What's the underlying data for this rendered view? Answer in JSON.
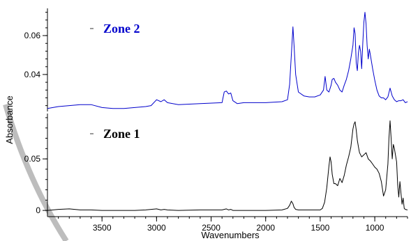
{
  "chart_data": [
    {
      "type": "line",
      "panel": "top",
      "xlabel": "",
      "ylabel": "",
      "xlim": [
        4000,
        700
      ],
      "ylim": [
        0.021,
        0.074
      ],
      "yticks": [
        0.04,
        0.06
      ],
      "yticks_labels": [
        "0.04",
        "0.06"
      ],
      "legend_position": "top-left",
      "series": [
        {
          "name": "Zone 2",
          "color": "#0000cc",
          "x": [
            4000,
            3900,
            3800,
            3700,
            3600,
            3500,
            3400,
            3300,
            3200,
            3100,
            3050,
            3000,
            2960,
            2930,
            2900,
            2800,
            2600,
            2400,
            2380,
            2360,
            2340,
            2320,
            2300,
            2260,
            2200,
            2000,
            1850,
            1800,
            1780,
            1765,
            1750,
            1740,
            1725,
            1700,
            1650,
            1600,
            1550,
            1500,
            1470,
            1455,
            1440,
            1420,
            1400,
            1390,
            1375,
            1360,
            1340,
            1320,
            1300,
            1280,
            1260,
            1240,
            1220,
            1200,
            1190,
            1180,
            1170,
            1160,
            1150,
            1140,
            1130,
            1120,
            1110,
            1100,
            1090,
            1080,
            1070,
            1060,
            1050,
            1040,
            1020,
            1000,
            980,
            960,
            940,
            920,
            900,
            880,
            860,
            840,
            820,
            800,
            780,
            760,
            740,
            720,
            700
          ],
          "y": [
            0.0225,
            0.0235,
            0.024,
            0.0245,
            0.0245,
            0.023,
            0.0225,
            0.0225,
            0.023,
            0.0235,
            0.024,
            0.027,
            0.026,
            0.027,
            0.0255,
            0.0245,
            0.025,
            0.0255,
            0.031,
            0.0315,
            0.03,
            0.0305,
            0.0265,
            0.025,
            0.0255,
            0.0255,
            0.026,
            0.027,
            0.035,
            0.05,
            0.0645,
            0.055,
            0.04,
            0.031,
            0.029,
            0.0285,
            0.0285,
            0.0295,
            0.032,
            0.039,
            0.032,
            0.031,
            0.0345,
            0.0375,
            0.038,
            0.036,
            0.0345,
            0.032,
            0.031,
            0.0345,
            0.0375,
            0.042,
            0.048,
            0.055,
            0.064,
            0.061,
            0.046,
            0.042,
            0.051,
            0.055,
            0.052,
            0.043,
            0.056,
            0.067,
            0.072,
            0.066,
            0.055,
            0.048,
            0.053,
            0.05,
            0.043,
            0.037,
            0.032,
            0.029,
            0.028,
            0.028,
            0.027,
            0.0285,
            0.033,
            0.029,
            0.027,
            0.026,
            0.0265,
            0.0265,
            0.027,
            0.0255,
            0.026
          ]
        }
      ]
    },
    {
      "type": "line",
      "panel": "bottom",
      "xlabel": "Wavenumbers",
      "ylabel": "",
      "xlim": [
        4000,
        700
      ],
      "ylim": [
        -0.006,
        0.094
      ],
      "yticks": [
        0,
        0.05
      ],
      "yticks_labels": [
        "0",
        "0.05"
      ],
      "xticks": [
        3500,
        3000,
        2500,
        2000,
        1500,
        1000
      ],
      "xticks_labels": [
        "3500",
        "3000",
        "2500",
        "2000",
        "1500",
        "1000"
      ],
      "legend_position": "top-left",
      "series": [
        {
          "name": "Zone 1",
          "color": "#000000",
          "x": [
            4000,
            3900,
            3800,
            3700,
            3600,
            3500,
            3400,
            3300,
            3200,
            3100,
            3000,
            2960,
            2930,
            2900,
            2800,
            2600,
            2400,
            2360,
            2340,
            2320,
            2300,
            2200,
            2000,
            1850,
            1800,
            1780,
            1765,
            1750,
            1740,
            1725,
            1700,
            1650,
            1600,
            1550,
            1500,
            1480,
            1460,
            1440,
            1420,
            1410,
            1400,
            1390,
            1375,
            1360,
            1340,
            1320,
            1300,
            1280,
            1260,
            1240,
            1220,
            1200,
            1190,
            1180,
            1170,
            1160,
            1150,
            1140,
            1120,
            1100,
            1080,
            1060,
            1040,
            1020,
            1000,
            980,
            960,
            940,
            920,
            900,
            880,
            870,
            860,
            850,
            840,
            830,
            820,
            800,
            790,
            780,
            770,
            760,
            750,
            740,
            730,
            720,
            700
          ],
          "y": [
            0,
            0.001,
            0.0015,
            0.0005,
            0.0005,
            0,
            0,
            0,
            0,
            0.0005,
            0.0015,
            0.0005,
            0.001,
            0.0005,
            0,
            0.0005,
            0.0005,
            0.0015,
            0.0005,
            0.001,
            0,
            0,
            0,
            0.0005,
            0.002,
            0.005,
            0.009,
            0.0065,
            0.003,
            0.001,
            0.0005,
            0.0005,
            0.0005,
            0.0005,
            0.0005,
            0.002,
            0.008,
            0.022,
            0.043,
            0.052,
            0.047,
            0.035,
            0.026,
            0.026,
            0.024,
            0.031,
            0.027,
            0.034,
            0.044,
            0.052,
            0.061,
            0.079,
            0.084,
            0.086,
            0.078,
            0.068,
            0.062,
            0.056,
            0.052,
            0.054,
            0.056,
            0.05,
            0.048,
            0.045,
            0.042,
            0.04,
            0.036,
            0.028,
            0.014,
            0.02,
            0.045,
            0.07,
            0.087,
            0.07,
            0.05,
            0.064,
            0.06,
            0.047,
            0.025,
            0.013,
            0.028,
            0.017,
            0.006,
            0.012,
            0.002,
            0.001,
            0.0005
          ]
        }
      ]
    }
  ],
  "shared_ylabel": "Absorbance"
}
